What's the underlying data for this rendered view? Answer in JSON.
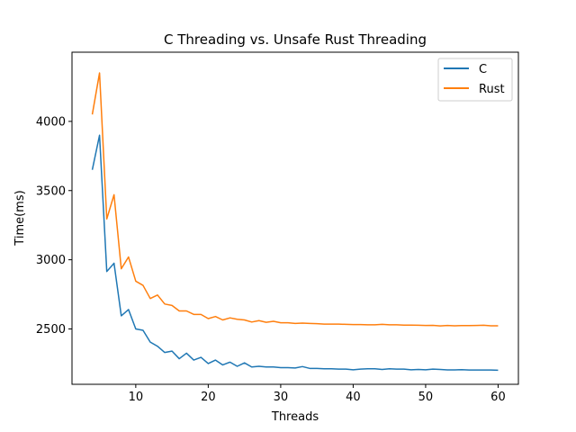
{
  "chart_data": {
    "type": "line",
    "title": "C Threading vs. Unsafe Rust Threading",
    "xlabel": "Threads",
    "ylabel": "Time(ms)",
    "xlim": [
      1.2,
      62.8
    ],
    "ylim": [
      2100,
      4500
    ],
    "xticks": [
      10,
      20,
      30,
      40,
      50,
      60
    ],
    "yticks": [
      2500,
      3000,
      3500,
      4000
    ],
    "grid": false,
    "legend_position": "top-right",
    "x": [
      4,
      5,
      6,
      7,
      8,
      9,
      10,
      11,
      12,
      13,
      14,
      15,
      16,
      17,
      18,
      19,
      20,
      21,
      22,
      23,
      24,
      25,
      26,
      27,
      28,
      29,
      30,
      31,
      32,
      33,
      34,
      35,
      36,
      37,
      38,
      39,
      40,
      41,
      42,
      43,
      44,
      45,
      46,
      47,
      48,
      49,
      50,
      51,
      52,
      53,
      54,
      55,
      56,
      57,
      58,
      59,
      60
    ],
    "series": [
      {
        "name": "C",
        "color": "#1f77b4",
        "values": [
          3650,
          3900,
          2915,
          2975,
          2595,
          2640,
          2500,
          2490,
          2405,
          2375,
          2330,
          2340,
          2285,
          2325,
          2275,
          2295,
          2250,
          2275,
          2240,
          2260,
          2230,
          2255,
          2225,
          2230,
          2225,
          2225,
          2220,
          2220,
          2218,
          2228,
          2215,
          2215,
          2212,
          2212,
          2210,
          2210,
          2205,
          2210,
          2212,
          2212,
          2207,
          2212,
          2210,
          2210,
          2205,
          2207,
          2205,
          2210,
          2207,
          2204,
          2204,
          2206,
          2203,
          2203,
          2203,
          2203,
          2202
        ]
      },
      {
        "name": "Rust",
        "color": "#ff7f0e",
        "values": [
          4050,
          4350,
          3295,
          3470,
          2935,
          3020,
          2845,
          2815,
          2720,
          2745,
          2680,
          2670,
          2630,
          2630,
          2605,
          2605,
          2575,
          2590,
          2565,
          2580,
          2570,
          2565,
          2550,
          2560,
          2548,
          2555,
          2545,
          2545,
          2540,
          2542,
          2540,
          2538,
          2535,
          2535,
          2535,
          2533,
          2532,
          2532,
          2530,
          2530,
          2533,
          2530,
          2530,
          2528,
          2528,
          2527,
          2525,
          2526,
          2522,
          2525,
          2523,
          2524,
          2524,
          2525,
          2527,
          2523,
          2523
        ]
      }
    ]
  }
}
